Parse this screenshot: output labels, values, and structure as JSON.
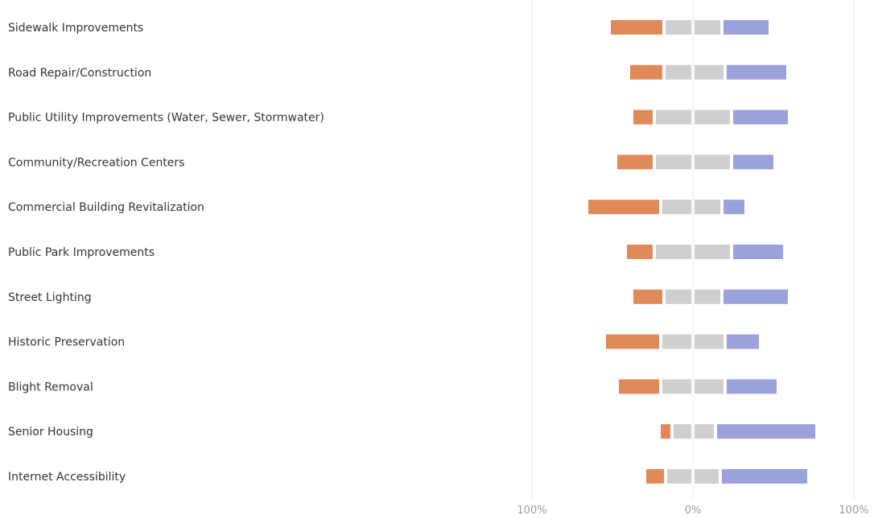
{
  "chart_data": {
    "type": "bar",
    "subtype": "diverging-stacked-horizontal",
    "title": "",
    "xlabel": "",
    "ylabel": "",
    "xlim": [
      -100,
      100
    ],
    "x_ticks": [
      "100%",
      "0%",
      "100%"
    ],
    "x_tick_values": [
      -100,
      0,
      100
    ],
    "grid": true,
    "legend": "none",
    "series_colors": {
      "negative_strong": "#e08a5a",
      "neutral": "#cfcfcf",
      "positive_strong": "#9aa1db"
    },
    "categories": [
      "Sidewalk Improvements",
      "Road Repair/Construction",
      "Public Utility Improvements (Water, Sewer, Stormwater)",
      "Community/Recreation Centers",
      "Commercial Building Revitalization",
      "Public Park Improvements",
      "Street Lighting",
      "Historic Preservation",
      "Blight Removal",
      "Senior Housing",
      "Internet Accessibility"
    ],
    "series": [
      {
        "values": [
          32,
          20,
          12,
          22,
          44,
          16,
          18,
          33,
          25,
          6,
          11
        ]
      },
      {
        "values": [
          16,
          16,
          22,
          22,
          18,
          22,
          16,
          18,
          18,
          11,
          15
        ]
      },
      {
        "values": [
          16,
          18,
          22,
          22,
          16,
          22,
          16,
          18,
          18,
          12,
          15
        ]
      },
      {
        "values": [
          28,
          37,
          34,
          25,
          13,
          31,
          40,
          20,
          31,
          61,
          53
        ]
      }
    ]
  }
}
